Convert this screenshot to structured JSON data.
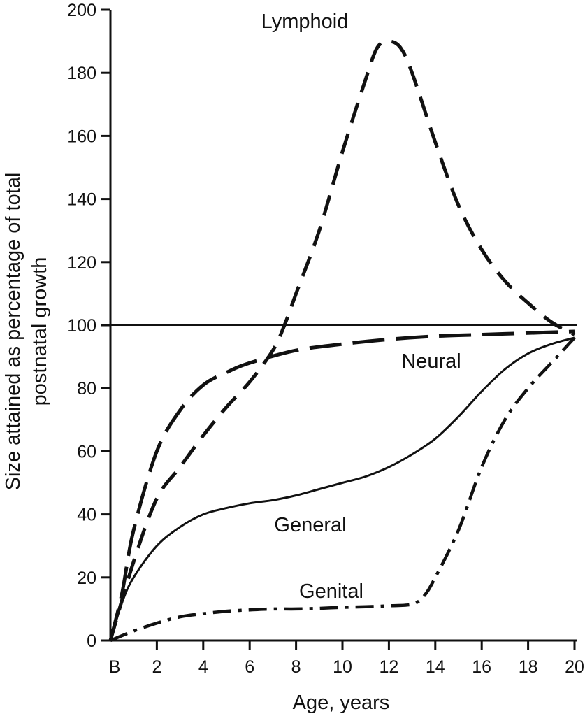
{
  "chart_data": {
    "type": "line",
    "title": "",
    "xlabel": "Age, years",
    "ylabel": "Size attained as percentage of total postnatal growth",
    "ylabel_lines": [
      "Size attained as percentage of total",
      "postnatal growth"
    ],
    "xlim": [
      0,
      20
    ],
    "ylim": [
      0,
      200
    ],
    "x_ticks": [
      {
        "value": 0,
        "label": "B"
      },
      {
        "value": 2,
        "label": "2"
      },
      {
        "value": 4,
        "label": "4"
      },
      {
        "value": 6,
        "label": "6"
      },
      {
        "value": 8,
        "label": "8"
      },
      {
        "value": 10,
        "label": "10"
      },
      {
        "value": 12,
        "label": "12"
      },
      {
        "value": 14,
        "label": "14"
      },
      {
        "value": 16,
        "label": "16"
      },
      {
        "value": 18,
        "label": "18"
      },
      {
        "value": 20,
        "label": "20"
      }
    ],
    "y_ticks": [
      0,
      20,
      40,
      60,
      80,
      100,
      120,
      140,
      160,
      180,
      200
    ],
    "reference_line": {
      "y": 100
    },
    "grid": false,
    "legend": "none (labels placed next to curves)",
    "series": [
      {
        "name": "Lymphoid",
        "line_style": "dashed",
        "x": [
          0,
          1,
          2,
          3,
          4,
          5,
          6,
          7,
          7.5,
          8,
          9,
          10,
          11,
          11.5,
          12,
          12.5,
          13,
          14,
          15,
          16,
          17,
          18,
          19,
          20
        ],
        "y": [
          0,
          25,
          45,
          55,
          65,
          74,
          82,
          92,
          100,
          110,
          130,
          155,
          178,
          188,
          190,
          188,
          180,
          158,
          138,
          124,
          114,
          107,
          101,
          97
        ]
      },
      {
        "name": "Neural",
        "line_style": "long-dashed",
        "x": [
          0,
          0.5,
          1,
          2,
          3,
          4,
          5,
          6,
          8,
          10,
          12,
          14,
          16,
          18,
          20
        ],
        "y": [
          0,
          15,
          35,
          60,
          73,
          81,
          85,
          88,
          92,
          94,
          95.5,
          96.5,
          97,
          97.5,
          98
        ]
      },
      {
        "name": "General",
        "line_style": "solid",
        "x": [
          0,
          0.5,
          1,
          2,
          3,
          4,
          5,
          6,
          7,
          8,
          9,
          10,
          11,
          12,
          13,
          14,
          15,
          16,
          17,
          18,
          19,
          20
        ],
        "y": [
          0,
          12,
          20,
          30,
          36,
          40,
          42,
          43.5,
          44.5,
          46,
          48,
          50,
          52,
          55,
          59,
          64,
          71,
          79,
          86,
          91,
          94,
          96
        ]
      },
      {
        "name": "Genital",
        "line_style": "dash-dot",
        "x": [
          0,
          1,
          2,
          3,
          4,
          5,
          6,
          7,
          8,
          9,
          10,
          11,
          12,
          13,
          13.5,
          14,
          15,
          16,
          17,
          18,
          19,
          20
        ],
        "y": [
          0,
          3,
          5.5,
          7.5,
          8.5,
          9.3,
          9.7,
          10,
          10,
          10.2,
          10.5,
          10.7,
          11,
          11.5,
          14,
          20,
          35,
          55,
          70,
          80,
          88,
          96
        ]
      }
    ]
  }
}
